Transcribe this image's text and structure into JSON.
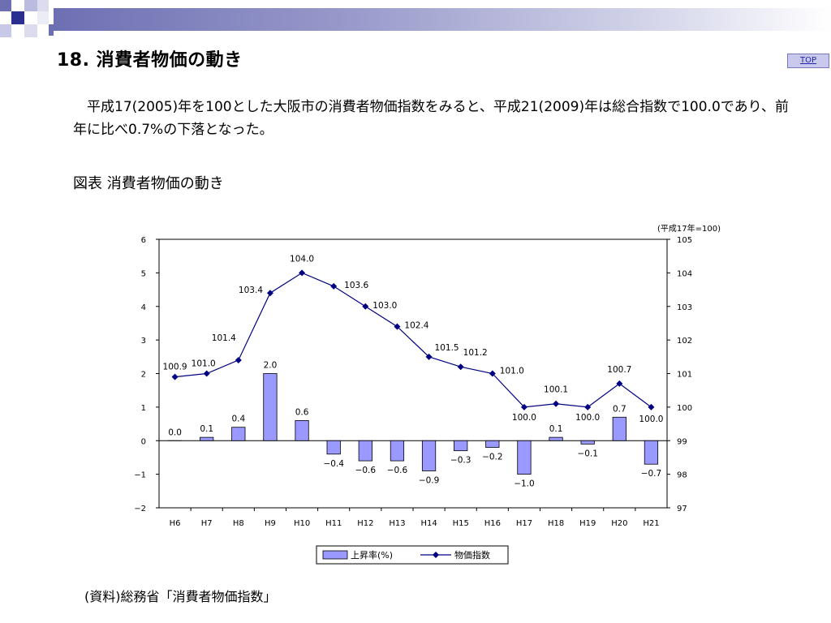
{
  "header": {
    "title": "18. 消費者物価の動き",
    "top_link": "TOP"
  },
  "summary": "平成17(2005)年を100とした大阪市の消費者物価指数をみると、平成21(2009)年は総合指数で100.0であり、前年に比べ0.7%の下落となった。",
  "caption": "図表 消費者物価の動き",
  "source": "(資料)総務省「消費者物価指数」",
  "colors": {
    "header_bar": "#8688c2",
    "bar_fill": "#9999ff",
    "line": "#000080",
    "top_button": "#c9c9ee"
  },
  "chart_data": {
    "type": "bar",
    "categories": [
      "H6",
      "H7",
      "H8",
      "H9",
      "H10",
      "H11",
      "H12",
      "H13",
      "H14",
      "H15",
      "H16",
      "H17",
      "H18",
      "H19",
      "H20",
      "H21"
    ],
    "series": [
      {
        "name": "上昇率(%)",
        "type": "bar",
        "axis": "left",
        "values": [
          0.0,
          0.1,
          0.4,
          2.0,
          0.6,
          -0.4,
          -0.6,
          -0.6,
          -0.9,
          -0.3,
          -0.2,
          -1.0,
          0.1,
          -0.1,
          0.7,
          -0.7
        ],
        "labels": [
          "0.0",
          "0.1",
          "0.4",
          "2.0",
          "0.6",
          "−0.4",
          "−0.6",
          "−0.6",
          "−0.9",
          "−0.3",
          "−0.2",
          "−1.0",
          "0.1",
          "−0.1",
          "0.7",
          "−0.7"
        ]
      },
      {
        "name": "物価指数",
        "type": "line",
        "axis": "right",
        "values": [
          100.9,
          101.0,
          101.4,
          103.4,
          104.0,
          103.6,
          103.0,
          102.4,
          101.5,
          101.2,
          101.0,
          100.0,
          100.1,
          100.0,
          100.7,
          100.0
        ],
        "labels": [
          "100.9",
          "101.0",
          "101.4",
          "103.4",
          "104.0",
          "103.6",
          "103.0",
          "102.4",
          "101.5",
          "101.2",
          "101.0",
          "100.0",
          "100.1",
          "100.0",
          "100.7",
          "100.0"
        ]
      }
    ],
    "y_left": {
      "range": [
        -2,
        6
      ],
      "ticks": [
        "−2",
        "−1",
        "0",
        "1",
        "2",
        "3",
        "4",
        "5",
        "6"
      ]
    },
    "y_right": {
      "range": [
        97,
        105
      ],
      "ticks": [
        "97",
        "98",
        "99",
        "100",
        "101",
        "102",
        "103",
        "104",
        "105"
      ]
    },
    "right_axis_note": "(平成17年=100)",
    "grid": false,
    "legend_position": "bottom"
  }
}
